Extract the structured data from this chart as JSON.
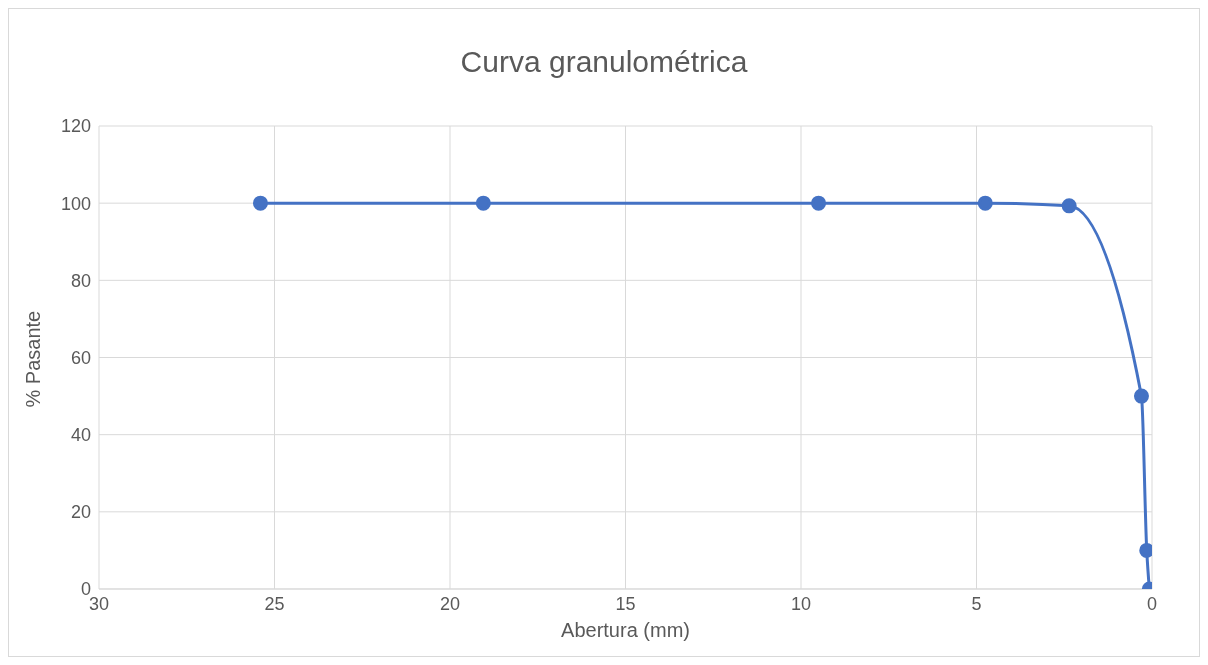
{
  "chart_data": {
    "type": "line",
    "title": "Curva granulométrica",
    "xlabel": "Abertura (mm)",
    "ylabel": "% Pasante",
    "x": [
      25.4,
      19.05,
      9.5,
      4.75,
      2.36,
      0.3,
      0.15,
      0.075
    ],
    "series": [
      {
        "color": "#4472c4",
        "values": [
          100,
          100,
          100,
          100,
          99.3,
          50,
          10,
          0
        ]
      }
    ],
    "xlim": [
      30,
      0
    ],
    "xticks": [
      30,
      25,
      20,
      15,
      10,
      5,
      0
    ],
    "ylim": [
      0,
      120
    ],
    "yticks": [
      0,
      20,
      40,
      60,
      80,
      100,
      120
    ],
    "grid": true,
    "marker": "circle",
    "line_style": "solid"
  }
}
